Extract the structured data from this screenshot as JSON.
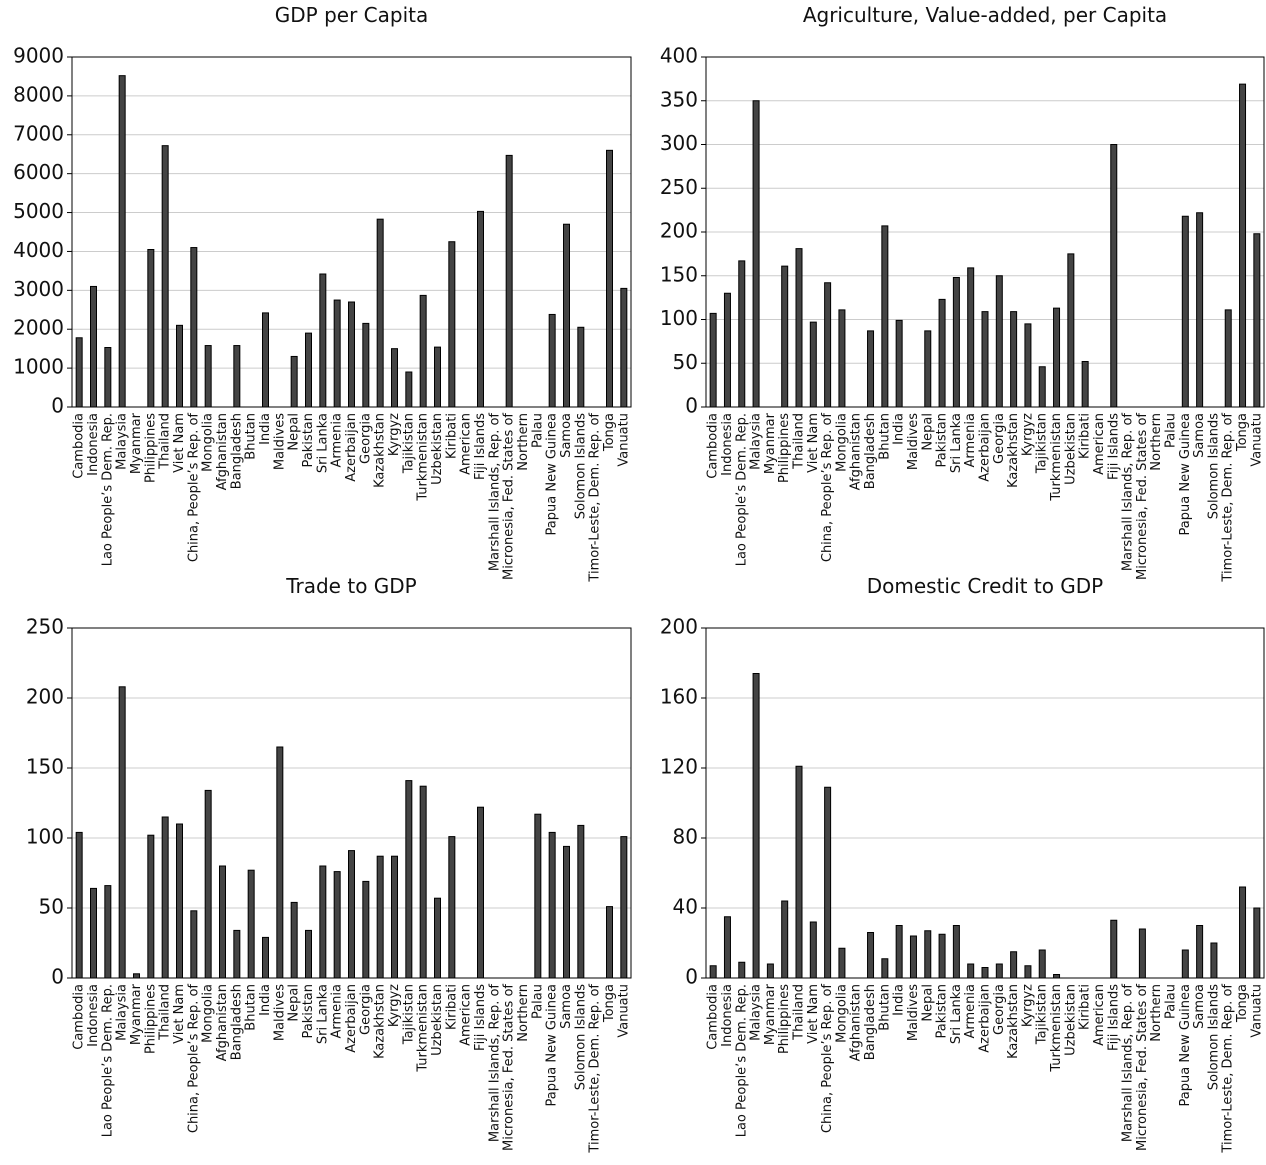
{
  "chart_data": [
    {
      "type": "bar",
      "title": "GDP per Capita",
      "color": "#444444",
      "grid": true,
      "categories": [
        "Cambodia",
        "Indonesia",
        "Lao People’s Dem. Rep.",
        "Malaysia",
        "Myanmar",
        "Philippines",
        "Thailand",
        "Viet Nam",
        "China, People’s Rep. of",
        "Mongolia",
        "Afghanistan",
        "Bangladesh",
        "Bhutan",
        "India",
        "Maldives",
        "Nepal",
        "Pakistan",
        "Sri Lanka",
        "Armenia",
        "Azerbaijan",
        "Georgia",
        "Kazakhstan",
        "Kyrgyz",
        "Tajikistan",
        "Turkmenistan",
        "Uzbekistan",
        "Kiribati",
        "American",
        "Fiji Islands",
        "Marshall Islands, Rep. of",
        "Micronesia, Fed. States of",
        "Northern",
        "Palau",
        "Papua New Guinea",
        "Samoa",
        "Solomon Islands",
        "Timor-Leste, Dem. Rep. of",
        "Tonga",
        "Vanuatu"
      ],
      "values": [
        1780,
        3100,
        1530,
        8520,
        null,
        4050,
        6720,
        2100,
        4100,
        1580,
        null,
        1580,
        null,
        2420,
        null,
        1300,
        1900,
        3420,
        2750,
        2700,
        2150,
        4830,
        1500,
        900,
        2870,
        1540,
        4250,
        null,
        5030,
        null,
        6470,
        null,
        null,
        2380,
        4700,
        2050,
        null,
        6600,
        3050
      ],
      "ylim": [
        0,
        9000
      ],
      "yticks": [
        0,
        1000,
        2000,
        3000,
        4000,
        5000,
        6000,
        7000,
        8000,
        9000
      ]
    },
    {
      "type": "bar",
      "title": "Agriculture, Value-added, per Capita",
      "color": "#444444",
      "grid": true,
      "categories": [
        "Cambodia",
        "Indonesia",
        "Lao People’s Dem. Rep.",
        "Malaysia",
        "Myanmar",
        "Philippines",
        "Thailand",
        "Viet Nam",
        "China, People’s Rep. of",
        "Mongolia",
        "Afghanistan",
        "Bangladesh",
        "Bhutan",
        "India",
        "Maldives",
        "Nepal",
        "Pakistan",
        "Sri Lanka",
        "Armenia",
        "Azerbaijan",
        "Georgia",
        "Kazakhstan",
        "Kyrgyz",
        "Tajikistan",
        "Turkmenistan",
        "Uzbekistan",
        "Kiribati",
        "American",
        "Fiji Islands",
        "Marshall Islands, Rep. of",
        "Micronesia, Fed. States of",
        "Northern",
        "Palau",
        "Papua New Guinea",
        "Samoa",
        "Solomon Islands",
        "Timor-Leste, Dem. Rep. of",
        "Tonga",
        "Vanuatu"
      ],
      "values": [
        107,
        130,
        167,
        350,
        null,
        161,
        181,
        97,
        142,
        111,
        null,
        87,
        207,
        99,
        null,
        87,
        123,
        148,
        159,
        109,
        150,
        109,
        95,
        46,
        113,
        175,
        52,
        null,
        300,
        null,
        null,
        null,
        null,
        218,
        222,
        null,
        111,
        369,
        198
      ],
      "ylim": [
        0,
        400
      ],
      "yticks": [
        0,
        50,
        100,
        150,
        200,
        250,
        300,
        350,
        400
      ]
    },
    {
      "type": "bar",
      "title": "Trade to GDP",
      "color": "#444444",
      "grid": true,
      "categories": [
        "Cambodia",
        "Indonesia",
        "Lao People’s Dem. Rep.",
        "Malaysia",
        "Myanmar",
        "Philippines",
        "Thailand",
        "Viet Nam",
        "China, People’s Rep. of",
        "Mongolia",
        "Afghanistan",
        "Bangladesh",
        "Bhutan",
        "India",
        "Maldives",
        "Nepal",
        "Pakistan",
        "Sri Lanka",
        "Armenia",
        "Azerbaijan",
        "Georgia",
        "Kazakhstan",
        "Kyrgyz",
        "Tajikistan",
        "Turkmenistan",
        "Uzbekistan",
        "Kiribati",
        "American",
        "Fiji Islands",
        "Marshall Islands, Rep. of",
        "Micronesia, Fed. States of",
        "Northern",
        "Palau",
        "Papua New Guinea",
        "Samoa",
        "Solomon Islands",
        "Timor-Leste, Dem. Rep. of",
        "Tonga",
        "Vanuatu"
      ],
      "values": [
        104,
        64,
        66,
        208,
        3,
        102,
        115,
        110,
        48,
        134,
        80,
        34,
        77,
        29,
        165,
        54,
        34,
        80,
        76,
        91,
        69,
        87,
        87,
        141,
        137,
        57,
        101,
        null,
        122,
        null,
        null,
        null,
        117,
        104,
        94,
        109,
        null,
        51,
        101
      ],
      "ylim": [
        0,
        250
      ],
      "yticks": [
        0,
        50,
        100,
        150,
        200,
        250
      ]
    },
    {
      "type": "bar",
      "title": "Domestic Credit to GDP",
      "color": "#444444",
      "grid": true,
      "categories": [
        "Cambodia",
        "Indonesia",
        "Lao People’s Dem. Rep.",
        "Malaysia",
        "Myanmar",
        "Philippines",
        "Thailand",
        "Viet Nam",
        "China, People’s Rep. of",
        "Mongolia",
        "Afghanistan",
        "Bangladesh",
        "Bhutan",
        "India",
        "Maldives",
        "Nepal",
        "Pakistan",
        "Sri Lanka",
        "Armenia",
        "Azerbaijan",
        "Georgia",
        "Kazakhstan",
        "Kyrgyz",
        "Tajikistan",
        "Turkmenistan",
        "Uzbekistan",
        "Kiribati",
        "American",
        "Fiji Islands",
        "Marshall Islands, Rep. of",
        "Micronesia, Fed. States of",
        "Northern",
        "Palau",
        "Papua New Guinea",
        "Samoa",
        "Solomon Islands",
        "Timor-Leste, Dem. Rep. of",
        "Tonga",
        "Vanuatu"
      ],
      "values": [
        7,
        35,
        9,
        174,
        8,
        44,
        121,
        32,
        109,
        17,
        null,
        26,
        11,
        30,
        24,
        27,
        25,
        30,
        8,
        6,
        8,
        15,
        7,
        16,
        2,
        null,
        null,
        null,
        33,
        null,
        28,
        null,
        null,
        16,
        30,
        20,
        null,
        52,
        40
      ],
      "ylim": [
        0,
        200
      ],
      "yticks": [
        0,
        40,
        80,
        120,
        160,
        200
      ]
    }
  ]
}
